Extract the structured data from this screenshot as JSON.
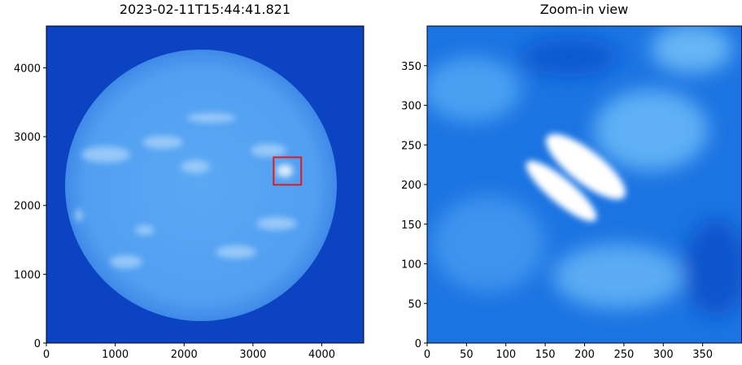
{
  "chart_data": [
    {
      "type": "image",
      "title": "2023-02-11T15:44:41.821",
      "xlim": [
        0,
        4608
      ],
      "ylim": [
        0,
        4608
      ],
      "xticks": [
        0,
        1000,
        2000,
        3000,
        4000
      ],
      "yticks": [
        0,
        1000,
        2000,
        3000,
        4000
      ],
      "highlight": {
        "xlim": [
          3300,
          3700
        ],
        "ylim": [
          2300,
          2700
        ],
        "color": "#e31a1c"
      }
    },
    {
      "type": "image",
      "title": "Zoom-in view",
      "xlim": [
        0,
        400
      ],
      "ylim": [
        0,
        400
      ],
      "xticks": [
        0,
        50,
        100,
        150,
        200,
        250,
        300,
        350
      ],
      "yticks": [
        0,
        50,
        100,
        150,
        200,
        250,
        300,
        350
      ]
    }
  ]
}
